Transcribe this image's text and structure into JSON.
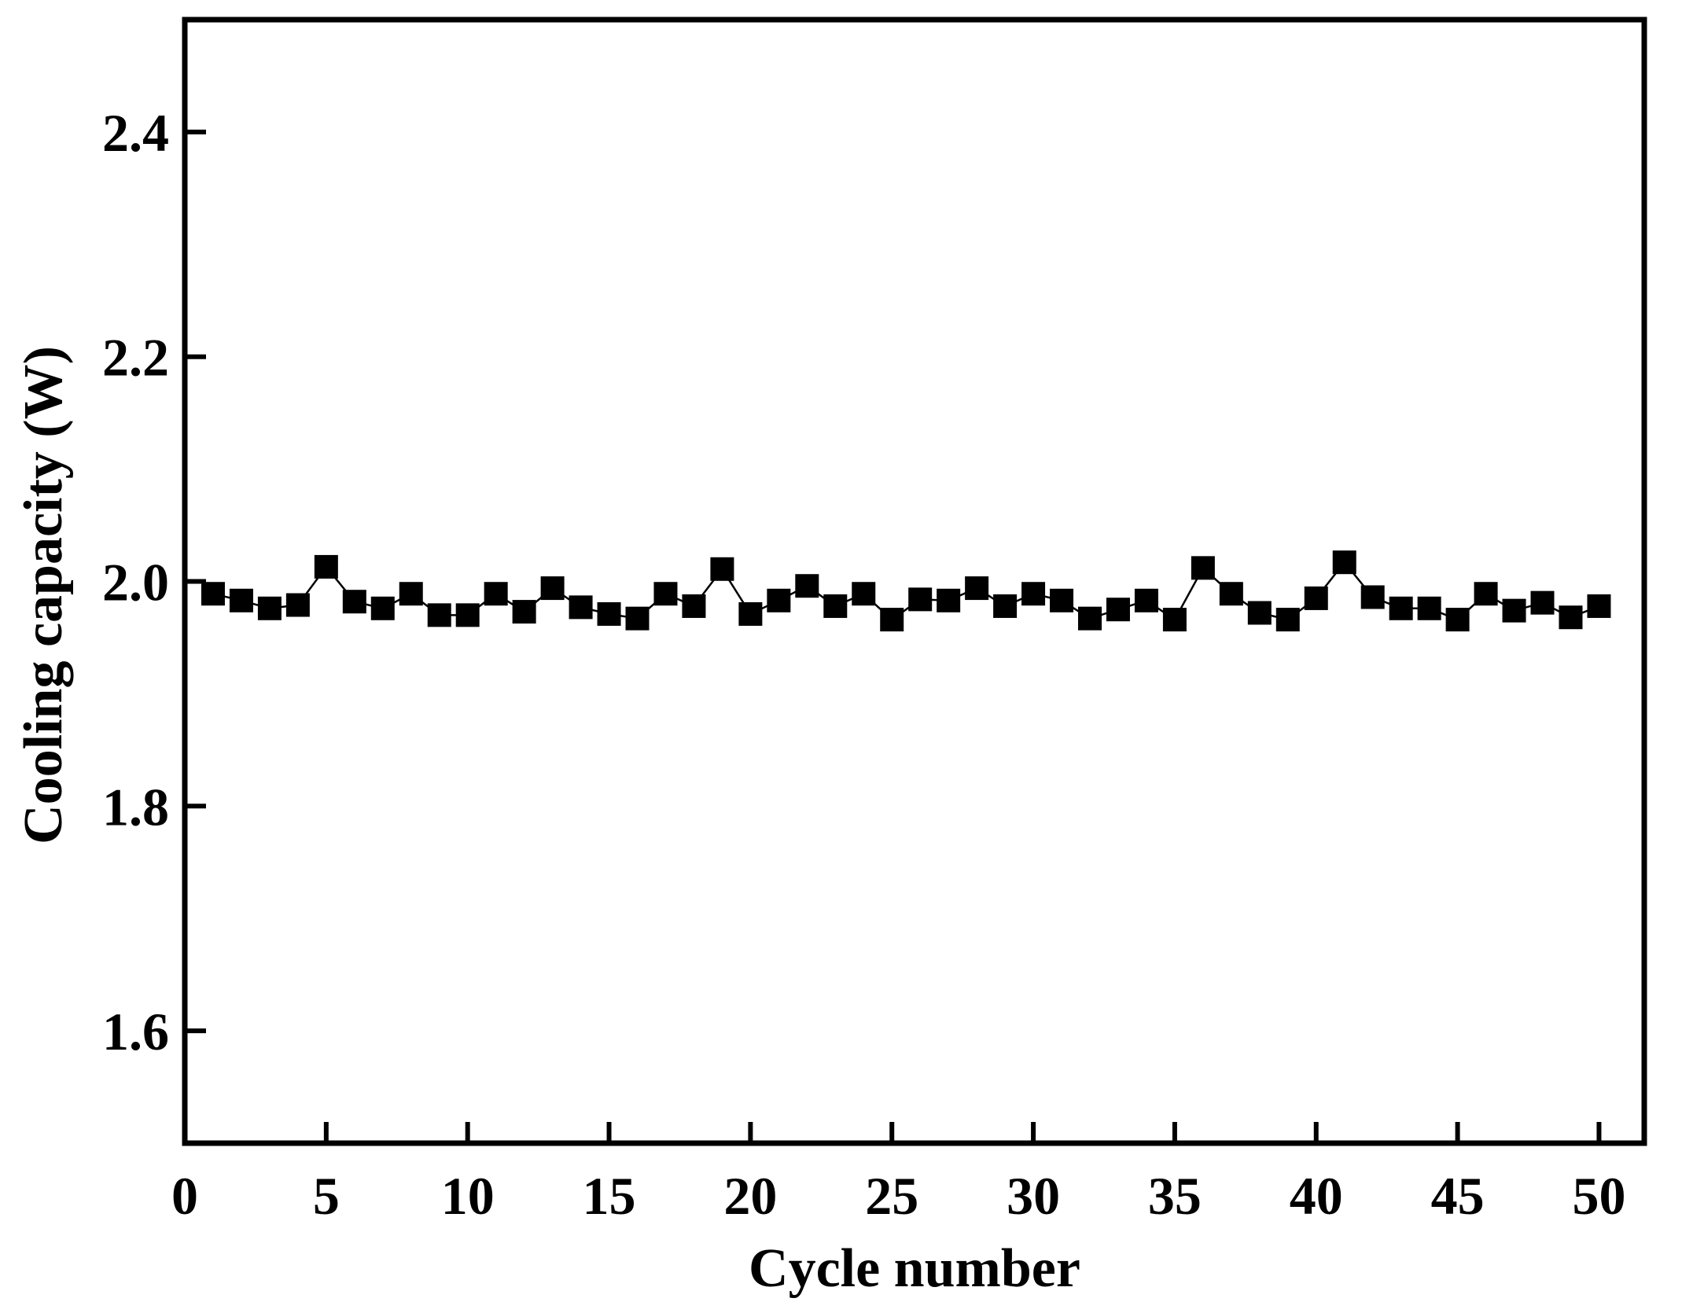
{
  "chart_data": {
    "type": "line",
    "x_label": "Cycle number",
    "y_label": "Cooling capacity (W)",
    "x": [
      1,
      2,
      3,
      4,
      5,
      6,
      7,
      8,
      9,
      10,
      11,
      12,
      13,
      14,
      15,
      16,
      17,
      18,
      19,
      20,
      21,
      22,
      23,
      24,
      25,
      26,
      27,
      28,
      29,
      30,
      31,
      32,
      33,
      34,
      35,
      36,
      37,
      38,
      39,
      40,
      41,
      42,
      43,
      44,
      45,
      46,
      47,
      48,
      49,
      50
    ],
    "values": [
      1.989,
      1.983,
      1.976,
      1.979,
      2.013,
      1.982,
      1.976,
      1.989,
      1.97,
      1.97,
      1.989,
      1.973,
      1.994,
      1.977,
      1.971,
      1.967,
      1.989,
      1.978,
      2.011,
      1.971,
      1.983,
      1.996,
      1.978,
      1.989,
      1.966,
      1.984,
      1.983,
      1.994,
      1.978,
      1.989,
      1.983,
      1.967,
      1.975,
      1.983,
      1.966,
      2.012,
      1.989,
      1.972,
      1.966,
      1.985,
      2.017,
      1.986,
      1.976,
      1.976,
      1.966,
      1.989,
      1.974,
      1.981,
      1.968,
      1.978
    ],
    "color": "#000000",
    "marker": "square",
    "xlim": [
      0,
      51.6
    ],
    "ylim": [
      1.5,
      2.5
    ],
    "xticks": [
      0,
      5,
      10,
      15,
      20,
      25,
      30,
      35,
      40,
      45,
      50
    ],
    "yticks": [
      1.6,
      1.8,
      {
        "value": 2.0,
        "label": "2.0"
      },
      2.2,
      2.4
    ]
  }
}
